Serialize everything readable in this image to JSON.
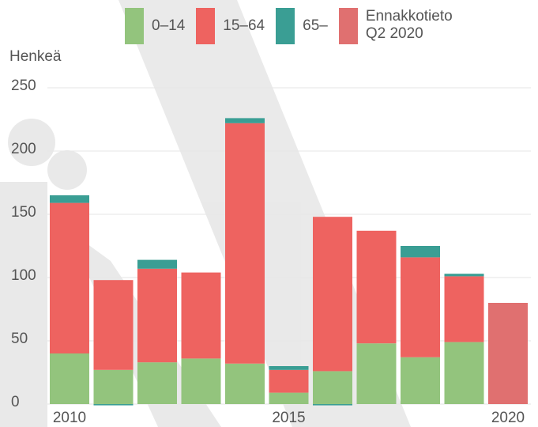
{
  "chart_data": {
    "type": "stacked_bar",
    "y_label": "Henkeä",
    "categories": [
      "2010",
      null,
      null,
      null,
      null,
      "2015",
      null,
      null,
      null,
      null,
      "2020"
    ],
    "series": [
      {
        "name": "0–14",
        "color": "#93c47d",
        "values": [
          40,
          27,
          33,
          36,
          32,
          9,
          26,
          48,
          37,
          49,
          null
        ]
      },
      {
        "name": "15–64",
        "color": "#ee6360",
        "values": [
          119,
          71,
          74,
          68,
          190,
          18,
          122,
          89,
          79,
          52,
          null
        ]
      },
      {
        "name": "65–",
        "color": "#3a9e94",
        "values": [
          6,
          -1,
          7,
          0,
          4,
          3,
          -1,
          0,
          9,
          2,
          null
        ]
      },
      {
        "name": "Ennakkotieto Q2 2020",
        "color": "#e07070",
        "values": [
          null,
          null,
          null,
          null,
          null,
          null,
          null,
          null,
          null,
          null,
          80
        ]
      }
    ],
    "ylim": [
      0,
      250
    ],
    "yticks": [
      0,
      50,
      100,
      150,
      200,
      250
    ],
    "grid": true
  }
}
